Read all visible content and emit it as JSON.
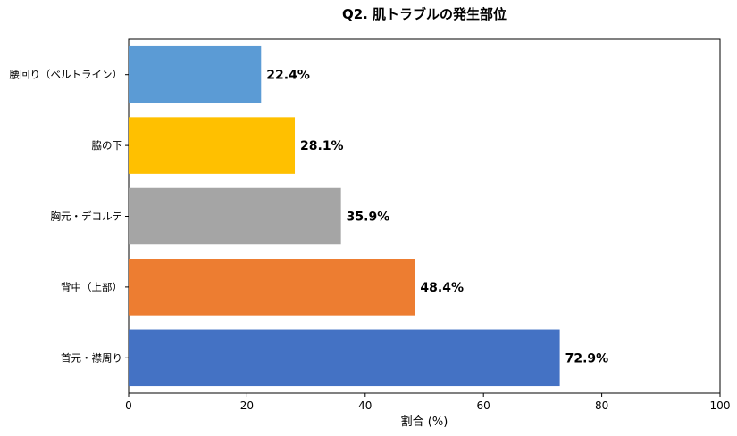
{
  "chart_data": {
    "type": "bar",
    "orientation": "horizontal",
    "title": "Q2. 肌トラブルの発生部位",
    "xlabel": "割合 (%)",
    "ylabel": "",
    "xlim": [
      0,
      100
    ],
    "xticks": [
      0,
      20,
      40,
      60,
      80,
      100
    ],
    "grid": false,
    "categories": [
      "首元・襟周り",
      "背中（上部）",
      "胸元・デコルテ",
      "脇の下",
      "腰回り（ベルトライン）"
    ],
    "values": [
      72.9,
      48.4,
      35.9,
      28.1,
      22.4
    ],
    "value_labels": [
      "72.9%",
      "48.4%",
      "35.9%",
      "28.1%",
      "22.4%"
    ],
    "colors": [
      "#4472c4",
      "#ed7d31",
      "#a5a5a5",
      "#ffc000",
      "#5b9bd5"
    ]
  }
}
